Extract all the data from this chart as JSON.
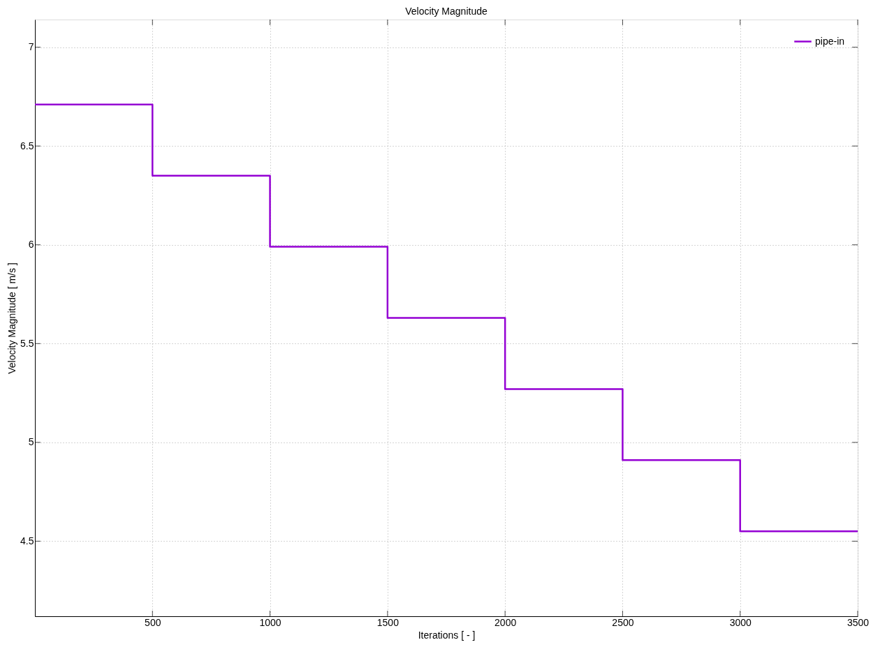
{
  "chart_data": {
    "type": "step",
    "title": "Velocity Magnitude",
    "xlabel": "Iterations [ - ]",
    "ylabel": "Velocity Magnitude [ m/s ]",
    "x": [
      0,
      500,
      1000,
      1500,
      2000,
      2500,
      3000,
      3500
    ],
    "series": [
      {
        "name": "pipe-in",
        "color": "#9400d3",
        "values": [
          6.71,
          6.35,
          5.99,
          5.63,
          5.27,
          4.91,
          4.55,
          4.55
        ]
      }
    ],
    "xlim": [
      0,
      3500
    ],
    "ylim": [
      4.12,
      7.14
    ],
    "xticks": [
      500,
      1000,
      1500,
      2000,
      2500,
      3000,
      3500
    ],
    "yticks": [
      4.5,
      5,
      5.5,
      6,
      6.5,
      7
    ],
    "grid": true,
    "legend": "top right",
    "line_style": "solid",
    "marker": "none"
  }
}
